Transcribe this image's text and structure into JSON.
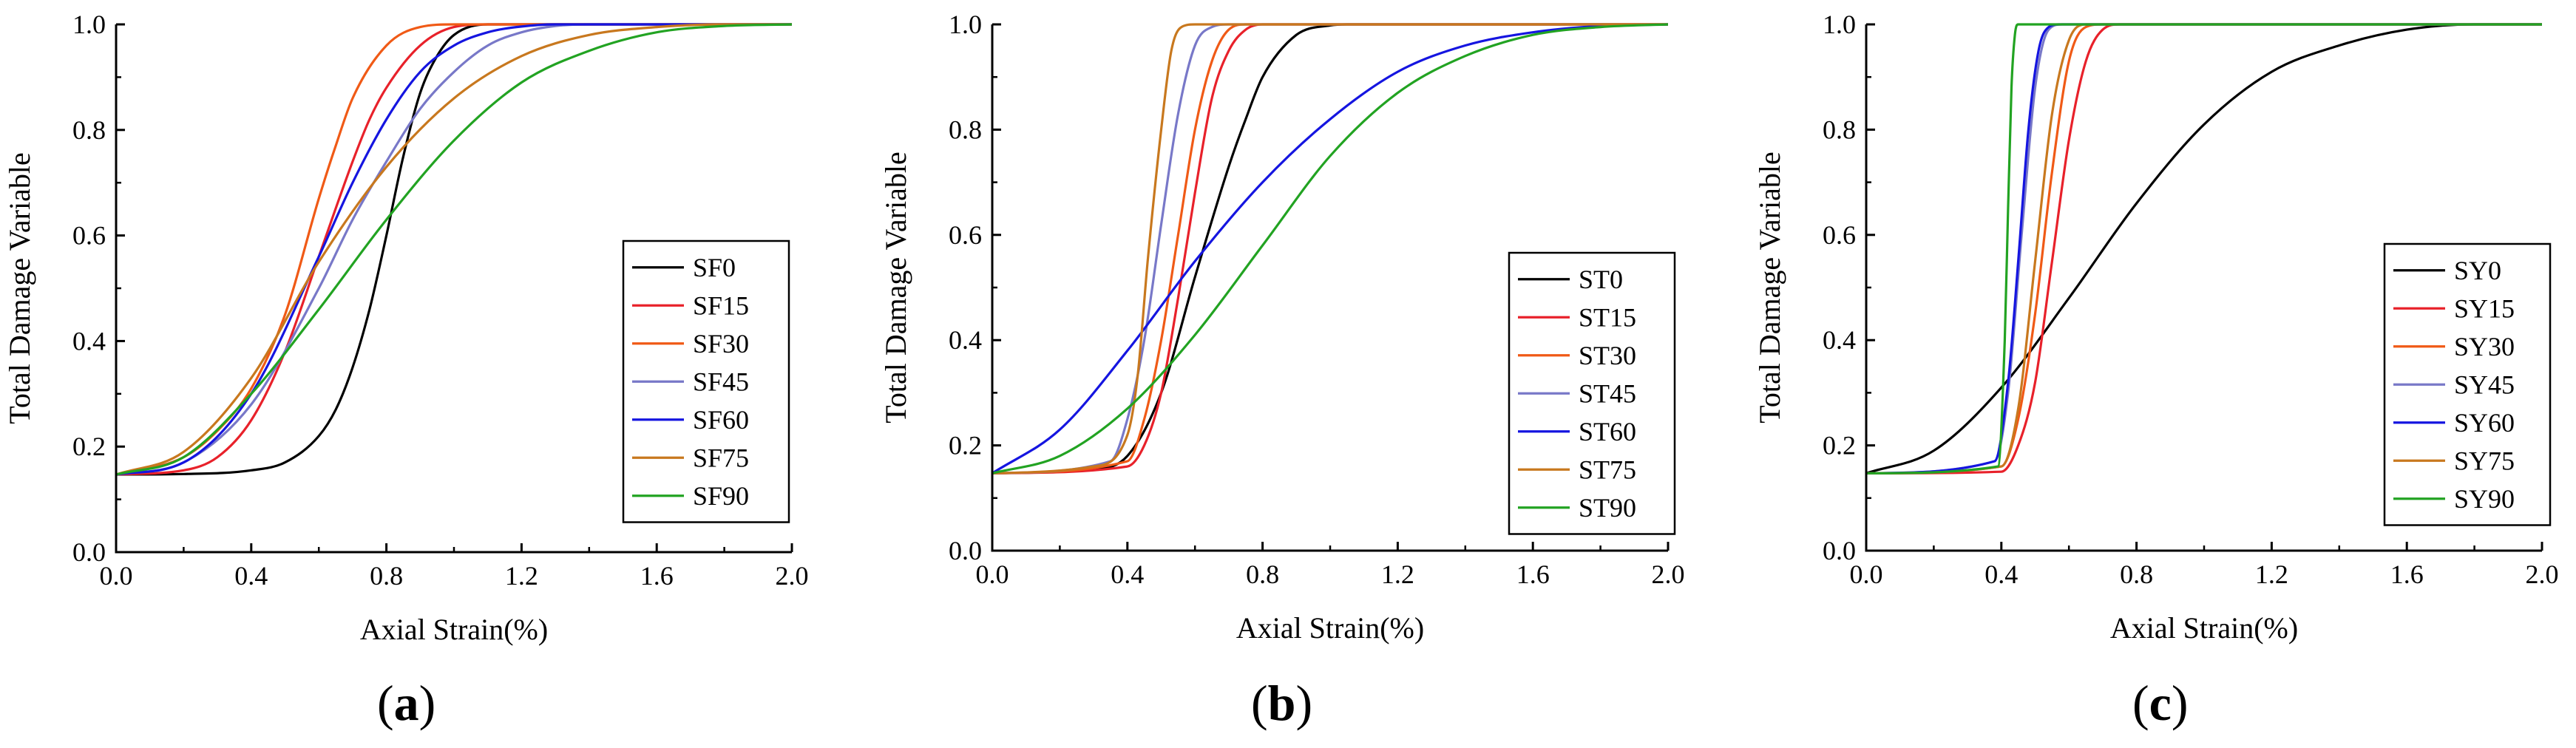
{
  "chart_data": [
    {
      "type": "line",
      "panel_label": "a",
      "xlabel": "Axial Strain(%)",
      "ylabel": "Total Damage Variable",
      "xlim": [
        0,
        2.0
      ],
      "ylim": [
        0,
        1.0
      ],
      "xticks": [
        "0.0",
        "0.4",
        "0.8",
        "1.2",
        "1.6",
        "2.0"
      ],
      "yticks": [
        "0.0",
        "0.2",
        "0.4",
        "0.6",
        "0.8",
        "1.0"
      ],
      "legend_position": "bottom-right",
      "series": [
        {
          "name": "SF0",
          "color": "#000000",
          "x": [
            0,
            0.2,
            0.4,
            0.5,
            0.6,
            0.65,
            0.7,
            0.75,
            0.8,
            0.85,
            0.9,
            0.95,
            1.0,
            1.1,
            1.2,
            1.4,
            2.0
          ],
          "y": [
            0.147,
            0.148,
            0.155,
            0.17,
            0.22,
            0.27,
            0.35,
            0.46,
            0.6,
            0.75,
            0.87,
            0.94,
            0.98,
            1.0,
            1.0,
            1.0,
            1.0
          ]
        },
        {
          "name": "SF15",
          "color": "#e8212a",
          "x": [
            0,
            0.2,
            0.3,
            0.4,
            0.5,
            0.6,
            0.7,
            0.75,
            0.8,
            0.9,
            1.0,
            1.1,
            2.0
          ],
          "y": [
            0.147,
            0.155,
            0.18,
            0.25,
            0.38,
            0.56,
            0.74,
            0.82,
            0.88,
            0.96,
            0.995,
            1.0,
            1.0
          ]
        },
        {
          "name": "SF30",
          "color": "#f05a16",
          "x": [
            0,
            0.2,
            0.3,
            0.4,
            0.5,
            0.6,
            0.65,
            0.7,
            0.8,
            0.9,
            1.0,
            2.0
          ],
          "y": [
            0.147,
            0.18,
            0.23,
            0.31,
            0.45,
            0.67,
            0.77,
            0.86,
            0.96,
            0.995,
            1.0,
            1.0
          ]
        },
        {
          "name": "SF45",
          "color": "#7878c8",
          "x": [
            0,
            0.2,
            0.4,
            0.6,
            0.7,
            0.8,
            0.9,
            1.0,
            1.1,
            1.2,
            1.3,
            1.4,
            2.0
          ],
          "y": [
            0.147,
            0.17,
            0.28,
            0.5,
            0.63,
            0.74,
            0.84,
            0.91,
            0.96,
            0.985,
            0.997,
            1.0,
            1.0
          ]
        },
        {
          "name": "SF60",
          "color": "#1515e0",
          "x": [
            0,
            0.2,
            0.4,
            0.6,
            0.7,
            0.8,
            0.9,
            1.0,
            1.1,
            1.2,
            1.3,
            2.0
          ],
          "y": [
            0.147,
            0.17,
            0.3,
            0.56,
            0.7,
            0.82,
            0.91,
            0.96,
            0.985,
            0.996,
            1.0,
            1.0
          ]
        },
        {
          "name": "SF75",
          "color": "#c8781e",
          "x": [
            0,
            0.2,
            0.4,
            0.6,
            0.8,
            1.0,
            1.2,
            1.4,
            1.6,
            1.8,
            2.0
          ],
          "y": [
            0.147,
            0.19,
            0.33,
            0.55,
            0.73,
            0.86,
            0.94,
            0.98,
            0.995,
            1.0,
            1.0
          ]
        },
        {
          "name": "SF90",
          "color": "#22a322",
          "x": [
            0,
            0.2,
            0.4,
            0.6,
            0.8,
            1.0,
            1.2,
            1.4,
            1.6,
            1.8,
            2.0
          ],
          "y": [
            0.147,
            0.18,
            0.3,
            0.46,
            0.63,
            0.78,
            0.89,
            0.95,
            0.985,
            0.997,
            1.0
          ]
        }
      ]
    },
    {
      "type": "line",
      "panel_label": "b",
      "xlabel": "Axial Strain(%)",
      "ylabel": "Total Damage Variable",
      "xlim": [
        0,
        2.0
      ],
      "ylim": [
        0,
        1.0
      ],
      "xticks": [
        "0.0",
        "0.4",
        "0.8",
        "1.2",
        "1.6",
        "2.0"
      ],
      "yticks": [
        "0.0",
        "0.2",
        "0.4",
        "0.6",
        "0.8",
        "1.0"
      ],
      "legend_position": "bottom-right",
      "series": [
        {
          "name": "ST0",
          "color": "#000000",
          "x": [
            0,
            0.3,
            0.4,
            0.5,
            0.6,
            0.7,
            0.75,
            0.8,
            0.9,
            1.0,
            1.05,
            2.0
          ],
          "y": [
            0.147,
            0.155,
            0.18,
            0.3,
            0.52,
            0.73,
            0.82,
            0.9,
            0.98,
            0.998,
            1.0,
            1.0
          ]
        },
        {
          "name": "ST15",
          "color": "#e8212a",
          "x": [
            0,
            0.4,
            0.45,
            0.5,
            0.55,
            0.6,
            0.65,
            0.7,
            0.75,
            0.8,
            2.0
          ],
          "y": [
            0.147,
            0.16,
            0.2,
            0.3,
            0.48,
            0.68,
            0.86,
            0.95,
            0.99,
            1.0,
            1.0
          ]
        },
        {
          "name": "ST30",
          "color": "#f05a16",
          "x": [
            0,
            0.4,
            0.45,
            0.5,
            0.55,
            0.6,
            0.65,
            0.7,
            0.75,
            2.0
          ],
          "y": [
            0.147,
            0.17,
            0.25,
            0.4,
            0.6,
            0.8,
            0.93,
            0.99,
            1.0,
            1.0
          ]
        },
        {
          "name": "ST45",
          "color": "#7878c8",
          "x": [
            0,
            0.35,
            0.4,
            0.45,
            0.5,
            0.55,
            0.6,
            0.65,
            0.7,
            2.0
          ],
          "y": [
            0.147,
            0.17,
            0.25,
            0.4,
            0.62,
            0.83,
            0.96,
            0.995,
            1.0,
            1.0
          ]
        },
        {
          "name": "ST60",
          "color": "#1515e0",
          "x": [
            0,
            0.2,
            0.4,
            0.6,
            0.8,
            1.0,
            1.2,
            1.4,
            1.6,
            1.8,
            2.0
          ],
          "y": [
            0.147,
            0.23,
            0.38,
            0.55,
            0.7,
            0.82,
            0.91,
            0.96,
            0.985,
            0.997,
            1.0
          ]
        },
        {
          "name": "ST75",
          "color": "#c8781e",
          "x": [
            0,
            0.3,
            0.4,
            0.43,
            0.46,
            0.5,
            0.53,
            0.56,
            0.6,
            2.0
          ],
          "y": [
            0.147,
            0.16,
            0.22,
            0.33,
            0.55,
            0.8,
            0.95,
            0.995,
            1.0,
            1.0
          ]
        },
        {
          "name": "ST90",
          "color": "#22a322",
          "x": [
            0,
            0.2,
            0.4,
            0.6,
            0.8,
            1.0,
            1.2,
            1.4,
            1.6,
            1.8,
            2.0
          ],
          "y": [
            0.147,
            0.18,
            0.27,
            0.41,
            0.58,
            0.75,
            0.87,
            0.94,
            0.98,
            0.995,
            1.0
          ]
        }
      ]
    },
    {
      "type": "line",
      "panel_label": "c",
      "xlabel": "Axial Strain(%)",
      "ylabel": "Total Damage Variable",
      "xlim": [
        0,
        2.0
      ],
      "ylim": [
        0,
        1.0
      ],
      "xticks": [
        "0.0",
        "0.4",
        "0.8",
        "1.2",
        "1.6",
        "2.0"
      ],
      "yticks": [
        "0.0",
        "0.2",
        "0.4",
        "0.6",
        "0.8",
        "1.0"
      ],
      "legend_position": "bottom-right",
      "series": [
        {
          "name": "SY0",
          "color": "#000000",
          "x": [
            0,
            0.2,
            0.4,
            0.6,
            0.8,
            1.0,
            1.2,
            1.4,
            1.6,
            1.8,
            2.0
          ],
          "y": [
            0.147,
            0.19,
            0.31,
            0.48,
            0.66,
            0.81,
            0.91,
            0.96,
            0.99,
            1.0,
            1.0
          ]
        },
        {
          "name": "SY15",
          "color": "#e8212a",
          "x": [
            0,
            0.4,
            0.45,
            0.5,
            0.55,
            0.6,
            0.65,
            0.7,
            0.75,
            2.0
          ],
          "y": [
            0.147,
            0.15,
            0.2,
            0.32,
            0.55,
            0.78,
            0.93,
            0.99,
            1.0,
            1.0
          ]
        },
        {
          "name": "SY30",
          "color": "#f05a16",
          "x": [
            0,
            0.4,
            0.45,
            0.5,
            0.55,
            0.6,
            0.65,
            0.7,
            2.0
          ],
          "y": [
            0.147,
            0.16,
            0.25,
            0.45,
            0.72,
            0.93,
            0.995,
            1.0,
            1.0
          ]
        },
        {
          "name": "SY45",
          "color": "#7878c8",
          "x": [
            0,
            0.38,
            0.42,
            0.46,
            0.5,
            0.54,
            0.58,
            2.0
          ],
          "y": [
            0.147,
            0.17,
            0.3,
            0.6,
            0.88,
            0.99,
            1.0,
            1.0
          ]
        },
        {
          "name": "SY60",
          "color": "#1515e0",
          "x": [
            0,
            0.38,
            0.42,
            0.45,
            0.48,
            0.51,
            0.54,
            0.57,
            2.0
          ],
          "y": [
            0.147,
            0.17,
            0.32,
            0.55,
            0.8,
            0.95,
            0.995,
            1.0,
            1.0
          ]
        },
        {
          "name": "SY75",
          "color": "#c8781e",
          "x": [
            0,
            0.4,
            0.45,
            0.5,
            0.55,
            0.6,
            0.65,
            2.0
          ],
          "y": [
            0.147,
            0.16,
            0.27,
            0.55,
            0.83,
            0.97,
            1.0,
            1.0
          ]
        },
        {
          "name": "SY90",
          "color": "#22a322",
          "x": [
            0,
            0.39,
            0.41,
            0.42,
            0.43,
            0.44,
            0.45,
            2.0
          ],
          "y": [
            0.147,
            0.16,
            0.4,
            0.65,
            0.88,
            0.98,
            1.0,
            1.0
          ]
        }
      ]
    }
  ]
}
